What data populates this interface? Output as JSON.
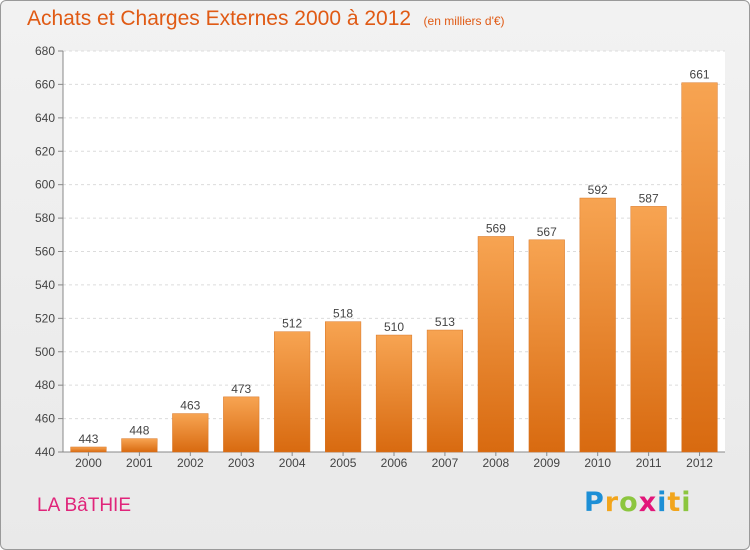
{
  "title": "Achats et Charges Externes 2000 à 2012",
  "subtitle": "(en milliers d'€)",
  "commune": "LA BâTHIE",
  "logo": {
    "letters": [
      "P",
      "r",
      "o",
      "x",
      "i",
      "t",
      "i"
    ],
    "colors": [
      "#1d8fd6",
      "#f2a51c",
      "#8cc63f",
      "#e2167a",
      "#1d8fd6",
      "#f2a51c",
      "#8cc63f"
    ]
  },
  "colors": {
    "bar_top": "#f7a452",
    "bar_bottom": "#d86a10",
    "title": "#e05a14",
    "commune": "#e0247a"
  },
  "chart_data": {
    "type": "bar",
    "categories": [
      "2000",
      "2001",
      "2002",
      "2003",
      "2004",
      "2005",
      "2006",
      "2007",
      "2008",
      "2009",
      "2010",
      "2011",
      "2012"
    ],
    "values": [
      443,
      448,
      463,
      473,
      512,
      518,
      510,
      513,
      569,
      567,
      592,
      587,
      661
    ],
    "ylim": [
      440,
      680
    ],
    "yticks": [
      440,
      460,
      480,
      500,
      520,
      540,
      560,
      580,
      600,
      620,
      640,
      660,
      680
    ],
    "grid": true,
    "legend": "none"
  }
}
